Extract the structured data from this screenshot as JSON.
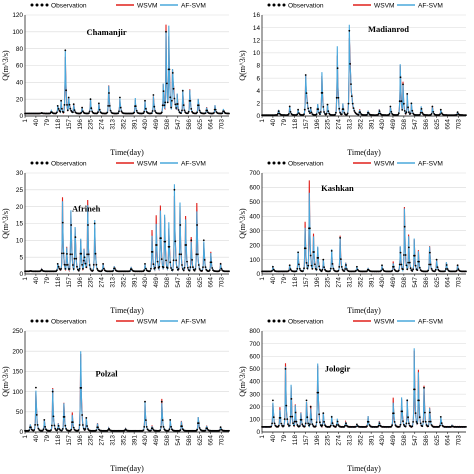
{
  "colors": {
    "observation": "#000000",
    "wsvm": "#e0201b",
    "afsvm": "#4aa8dc",
    "grid": "#d9d9d9"
  },
  "x_ticks": [
    "1",
    "40",
    "79",
    "118",
    "157",
    "196",
    "235",
    "274",
    "313",
    "352",
    "391",
    "430",
    "469",
    "508",
    "547",
    "586",
    "625",
    "664",
    "703"
  ],
  "legend": [
    "Observation",
    "WSVM",
    "AF-SVM"
  ],
  "chart_data": [
    {
      "type": "line",
      "station": "Chamanjir",
      "xlabel": "Time(day)",
      "ylabel": "Q(m^3/s)",
      "xlim": [
        1,
        730
      ],
      "ylim": [
        0,
        120
      ],
      "yticks": [
        "0",
        "20",
        "40",
        "60",
        "80",
        "100",
        "120"
      ],
      "peaks": [
        [
          60,
          4
        ],
        [
          95,
          6
        ],
        [
          118,
          12
        ],
        [
          130,
          18
        ],
        [
          145,
          78
        ],
        [
          157,
          22
        ],
        [
          175,
          14
        ],
        [
          205,
          10
        ],
        [
          235,
          20
        ],
        [
          265,
          15
        ],
        [
          300,
          37
        ],
        [
          340,
          22
        ],
        [
          395,
          20
        ],
        [
          430,
          18
        ],
        [
          460,
          25
        ],
        [
          495,
          40
        ],
        [
          505,
          100
        ],
        [
          515,
          105
        ],
        [
          528,
          60
        ],
        [
          545,
          25
        ],
        [
          565,
          30
        ],
        [
          590,
          32
        ],
        [
          620,
          22
        ],
        [
          650,
          10
        ],
        [
          680,
          12
        ],
        [
          710,
          8
        ]
      ],
      "base": 3,
      "shift": 0
    },
    {
      "type": "line",
      "station": "Madianrod",
      "xlabel": "Time(day)",
      "ylabel": "Q(m^3/s)",
      "xlim": [
        1,
        730
      ],
      "ylim": [
        0,
        16
      ],
      "yticks": [
        "0",
        "2",
        "4",
        "6",
        "8",
        "10",
        "12",
        "14",
        "16"
      ],
      "peaks": [
        [
          60,
          1
        ],
        [
          100,
          1.5
        ],
        [
          130,
          1
        ],
        [
          157,
          6.5
        ],
        [
          175,
          1.3
        ],
        [
          200,
          2
        ],
        [
          215,
          7
        ],
        [
          235,
          1.8
        ],
        [
          270,
          10.5
        ],
        [
          290,
          2
        ],
        [
          313,
          13.5
        ],
        [
          350,
          1
        ],
        [
          380,
          0.8
        ],
        [
          420,
          1
        ],
        [
          460,
          1.5
        ],
        [
          495,
          8.5
        ],
        [
          505,
          5
        ],
        [
          520,
          3.5
        ],
        [
          535,
          2
        ],
        [
          570,
          1.5
        ],
        [
          610,
          1.5
        ],
        [
          640,
          1
        ],
        [
          700,
          0.6
        ]
      ],
      "base": 0.15,
      "shift": 0
    },
    {
      "type": "line",
      "station": "Afrineh",
      "xlabel": "Time(day)",
      "ylabel": "Q(m^3/s)",
      "xlim": [
        1,
        730
      ],
      "ylim": [
        0,
        30
      ],
      "yticks": [
        "0",
        "5",
        "10",
        "15",
        "20",
        "25",
        "30"
      ],
      "peaks": [
        [
          20,
          1
        ],
        [
          60,
          1.5
        ],
        [
          118,
          3
        ],
        [
          135,
          21
        ],
        [
          150,
          8
        ],
        [
          165,
          20
        ],
        [
          180,
          15
        ],
        [
          200,
          11
        ],
        [
          212,
          7
        ],
        [
          225,
          20
        ],
        [
          250,
          15
        ],
        [
          280,
          3
        ],
        [
          320,
          2.5
        ],
        [
          380,
          2
        ],
        [
          430,
          3
        ],
        [
          455,
          12
        ],
        [
          470,
          16
        ],
        [
          485,
          20
        ],
        [
          500,
          18
        ],
        [
          515,
          15
        ],
        [
          535,
          25
        ],
        [
          555,
          20
        ],
        [
          575,
          16
        ],
        [
          595,
          10
        ],
        [
          615,
          20
        ],
        [
          640,
          10
        ],
        [
          665,
          6
        ],
        [
          700,
          3
        ]
      ],
      "base": 0.8,
      "shift": 1
    },
    {
      "type": "line",
      "station": "Kashkan",
      "xlabel": "Time(day)",
      "ylabel": "Q(m^3/s)",
      "xlim": [
        1,
        730
      ],
      "ylim": [
        0,
        700
      ],
      "yticks": [
        "0",
        "100",
        "200",
        "300",
        "400",
        "500",
        "600",
        "700"
      ],
      "peaks": [
        [
          40,
          50
        ],
        [
          100,
          60
        ],
        [
          130,
          150
        ],
        [
          155,
          330
        ],
        [
          170,
          600
        ],
        [
          185,
          280
        ],
        [
          200,
          200
        ],
        [
          220,
          100
        ],
        [
          250,
          160
        ],
        [
          280,
          250
        ],
        [
          300,
          80
        ],
        [
          340,
          50
        ],
        [
          380,
          40
        ],
        [
          430,
          60
        ],
        [
          470,
          80
        ],
        [
          495,
          200
        ],
        [
          510,
          450
        ],
        [
          525,
          250
        ],
        [
          545,
          230
        ],
        [
          560,
          150
        ],
        [
          600,
          200
        ],
        [
          625,
          100
        ],
        [
          660,
          80
        ],
        [
          700,
          60
        ]
      ],
      "base": 18,
      "shift": 1
    },
    {
      "type": "line",
      "station": "Polzal",
      "xlabel": "Time(day)",
      "ylabel": "Q(m^3/s)",
      "xlim": [
        1,
        730
      ],
      "ylim": [
        0,
        250
      ],
      "yticks": [
        "0",
        "50",
        "100",
        "150",
        "200",
        "250"
      ],
      "peaks": [
        [
          20,
          20
        ],
        [
          40,
          110
        ],
        [
          70,
          30
        ],
        [
          100,
          100
        ],
        [
          120,
          20
        ],
        [
          140,
          70
        ],
        [
          170,
          45
        ],
        [
          200,
          210
        ],
        [
          220,
          35
        ],
        [
          260,
          20
        ],
        [
          300,
          10
        ],
        [
          360,
          8
        ],
        [
          430,
          75
        ],
        [
          455,
          15
        ],
        [
          490,
          75
        ],
        [
          520,
          30
        ],
        [
          560,
          25
        ],
        [
          620,
          40
        ],
        [
          650,
          15
        ],
        [
          700,
          12
        ]
      ],
      "base": 3,
      "shift": 0
    },
    {
      "type": "line",
      "station": "Jologir",
      "xlabel": "Time(day)",
      "ylabel": "Q(m^3/s)",
      "xlim": [
        1,
        730
      ],
      "ylim": [
        0,
        800
      ],
      "yticks": [
        "0",
        "100",
        "200",
        "300",
        "400",
        "500",
        "600",
        "700",
        "800"
      ],
      "peaks": [
        [
          40,
          250
        ],
        [
          65,
          180
        ],
        [
          85,
          500
        ],
        [
          105,
          350
        ],
        [
          120,
          200
        ],
        [
          140,
          150
        ],
        [
          160,
          250
        ],
        [
          175,
          200
        ],
        [
          200,
          570
        ],
        [
          220,
          150
        ],
        [
          250,
          120
        ],
        [
          270,
          100
        ],
        [
          300,
          80
        ],
        [
          340,
          60
        ],
        [
          380,
          120
        ],
        [
          420,
          80
        ],
        [
          470,
          250
        ],
        [
          500,
          280
        ],
        [
          520,
          250
        ],
        [
          545,
          620
        ],
        [
          560,
          450
        ],
        [
          580,
          350
        ],
        [
          600,
          200
        ],
        [
          640,
          120
        ],
        [
          680,
          50
        ],
        [
          710,
          30
        ]
      ],
      "base": 40,
      "shift": 0
    }
  ]
}
